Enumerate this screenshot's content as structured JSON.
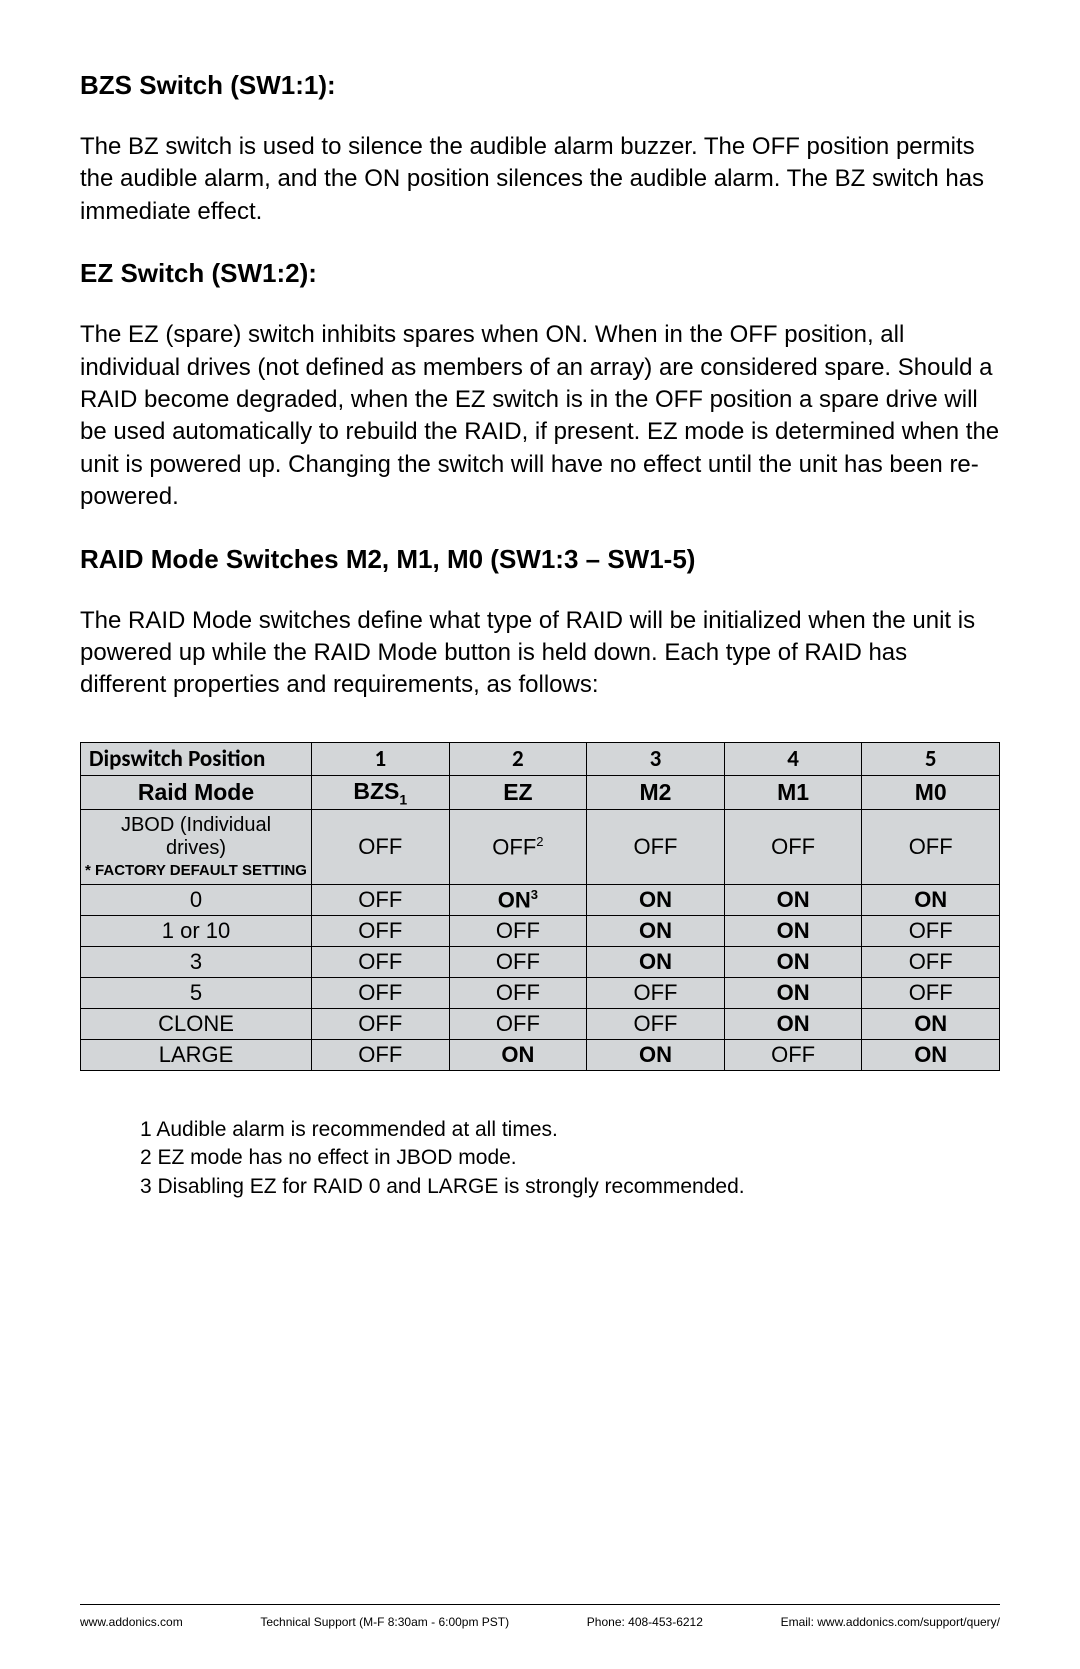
{
  "sections": {
    "s1": {
      "title": "BZS Switch (SW1:1):",
      "body": "The BZ switch is used to silence the audible alarm buzzer. The OFF position permits the audible alarm, and the ON position silences the audible alarm. The BZ switch has immediate effect."
    },
    "s2": {
      "title": "EZ Switch (SW1:2):",
      "body": "The EZ (spare) switch inhibits spares when ON. When in the OFF position, all individual drives (not defined as members of an array) are considered spare. Should a RAID become degraded, when the EZ switch is in the OFF position a spare drive will be used automatically to rebuild the RAID, if present. EZ mode is determined when the unit is powered up. Changing the switch will have no effect until the unit has been re-powered."
    },
    "s3": {
      "title": "RAID Mode Switches M2, M1, M0 (SW1:3 – SW1-5)",
      "body": "The RAID Mode switches define what type of RAID will be initialized when the unit is powered up while the RAID Mode button is held down. Each type of RAID has different properties and requirements, as follows:"
    }
  },
  "table": {
    "header1": {
      "c0": "Dipswitch Position",
      "c1": "1",
      "c2": "2",
      "c3": "3",
      "c4": "4",
      "c5": "5"
    },
    "header2": {
      "c0": "Raid Mode",
      "c1": "BZS",
      "c1_sub": "1",
      "c2": "EZ",
      "c3": "M2",
      "c4": "M1",
      "c5": "M0"
    },
    "jbod": {
      "line1": "JBOD (Individual",
      "line2": "drives)",
      "factory": "* FACTORY DEFAULT SETTING"
    },
    "rows": [
      {
        "mode": "",
        "c1": "OFF",
        "c2": "OFF",
        "c2_sup": "2",
        "c3": "OFF",
        "c4": "OFF",
        "c5": "OFF",
        "b": {
          "c2": false,
          "c3": false,
          "c4": false,
          "c5": false
        }
      },
      {
        "mode": "0",
        "c1": "OFF",
        "c2": "ON",
        "c2_sup": "3",
        "c3": "ON",
        "c4": "ON",
        "c5": "ON",
        "b": {
          "c2": true,
          "c3": true,
          "c4": true,
          "c5": true
        }
      },
      {
        "mode": "1 or 10",
        "c1": "OFF",
        "c2": "OFF",
        "c3": "ON",
        "c4": "ON",
        "c5": "OFF",
        "b": {
          "c2": false,
          "c3": true,
          "c4": true,
          "c5": false
        }
      },
      {
        "mode": "3",
        "c1": "OFF",
        "c2": "OFF",
        "c3": "ON",
        "c4": "ON",
        "c5": "OFF",
        "b": {
          "c2": false,
          "c3": true,
          "c4": true,
          "c5": false
        }
      },
      {
        "mode": "5",
        "c1": "OFF",
        "c2": "OFF",
        "c3": "OFF",
        "c4": "ON",
        "c5": "OFF",
        "b": {
          "c2": false,
          "c3": false,
          "c4": true,
          "c5": false
        }
      },
      {
        "mode": "CLONE",
        "c1": "OFF",
        "c2": "OFF",
        "c3": "OFF",
        "c4": "ON",
        "c5": "ON",
        "b": {
          "c2": false,
          "c3": false,
          "c4": true,
          "c5": true
        }
      },
      {
        "mode": "LARGE",
        "c1": "OFF",
        "c2": "ON",
        "c3": "ON",
        "c4": "OFF",
        "c5": "ON",
        "b": {
          "c2": true,
          "c3": true,
          "c4": false,
          "c5": true
        }
      }
    ]
  },
  "footnotes": {
    "n1": "1 Audible alarm is recommended at all times.",
    "n2": "2 EZ mode has no effect in JBOD mode.",
    "n3": "3 Disabling EZ for RAID 0 and LARGE is strongly recommended."
  },
  "footer": {
    "url": "www.addonics.com",
    "support": "Technical Support (M-F 8:30am - 6:00pm PST)",
    "phone": "Phone: 408-453-6212",
    "email": "Email: www.addonics.com/support/query/"
  }
}
